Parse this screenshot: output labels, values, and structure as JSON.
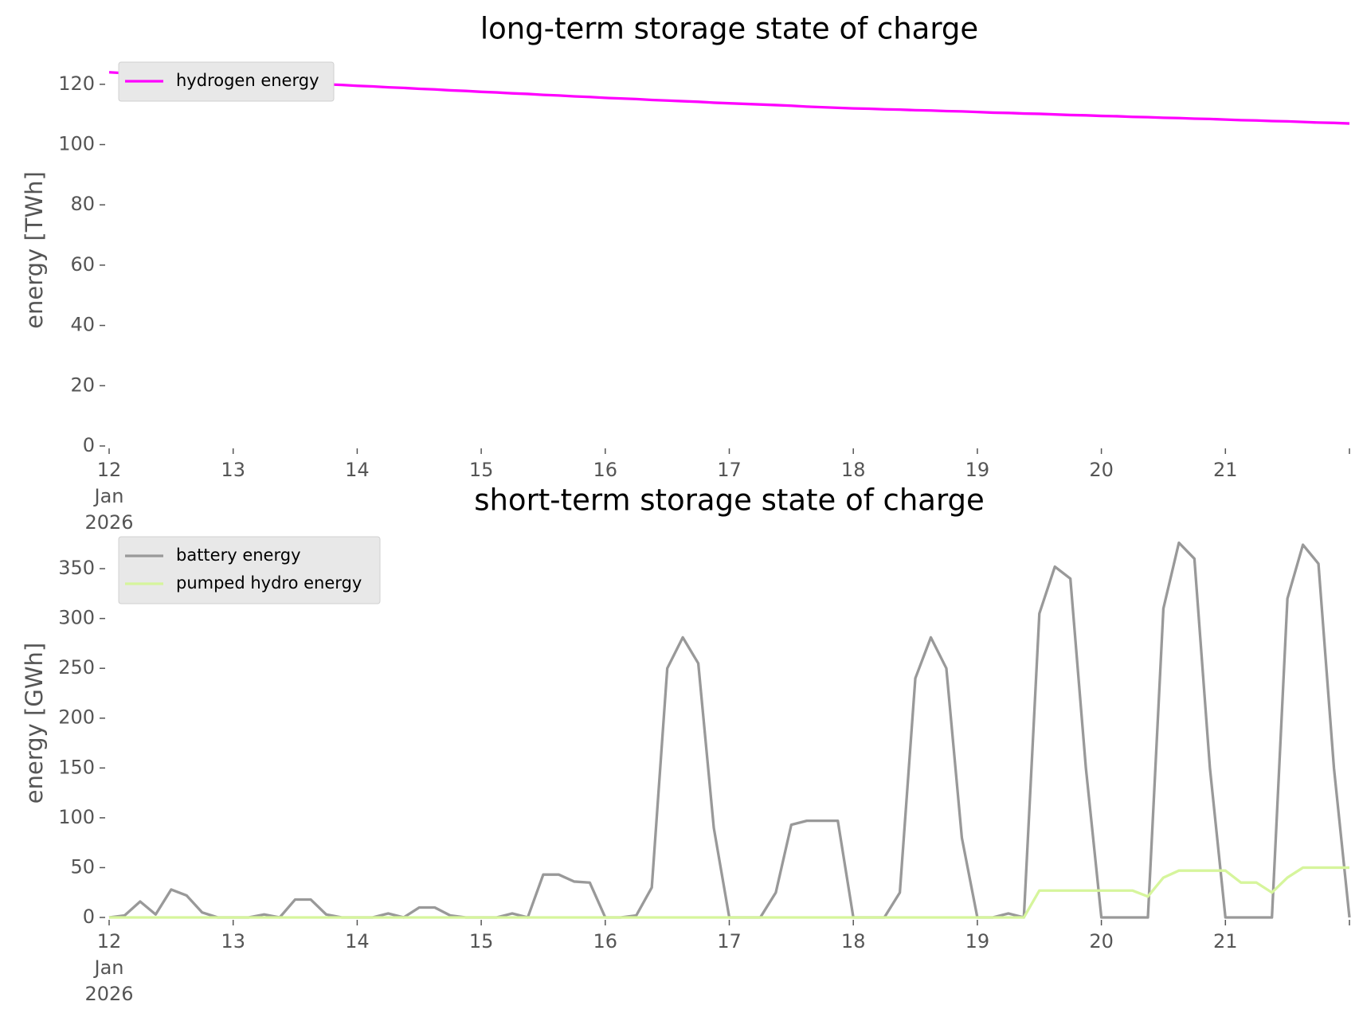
{
  "chart_data": [
    {
      "type": "line",
      "title": "long-term storage state of charge",
      "ylabel": "energy [TWh]",
      "x": [
        12,
        12.125,
        12.25,
        12.375,
        12.5,
        12.625,
        12.75,
        12.875,
        13,
        13.125,
        13.25,
        13.375,
        13.5,
        13.625,
        13.75,
        13.875,
        14,
        14.125,
        14.25,
        14.375,
        14.5,
        14.625,
        14.75,
        14.875,
        15,
        15.125,
        15.25,
        15.375,
        15.5,
        15.625,
        15.75,
        15.875,
        16,
        16.125,
        16.25,
        16.375,
        16.5,
        16.625,
        16.75,
        16.875,
        17,
        17.125,
        17.25,
        17.375,
        17.5,
        17.625,
        17.75,
        17.875,
        18,
        18.125,
        18.25,
        18.375,
        18.5,
        18.625,
        18.75,
        18.875,
        19,
        19.125,
        19.25,
        19.375,
        19.5,
        19.625,
        19.75,
        19.875,
        20,
        20.125,
        20.25,
        20.375,
        20.5,
        20.625,
        20.75,
        20.875,
        21,
        21.125,
        21.25,
        21.375,
        21.5,
        21.625,
        21.75,
        21.875,
        22
      ],
      "series": [
        {
          "name": "hydrogen energy",
          "color": "#ff00ff",
          "values": [
            124,
            123.7,
            123.4,
            123.1,
            122.8,
            122.4,
            122.1,
            121.8,
            121.5,
            121.3,
            121,
            120.8,
            120.5,
            120.3,
            120,
            119.8,
            119.5,
            119.3,
            119,
            118.8,
            118.5,
            118.3,
            118,
            117.8,
            117.5,
            117.3,
            117,
            116.8,
            116.5,
            116.3,
            116,
            115.8,
            115.5,
            115.3,
            115.1,
            114.8,
            114.6,
            114.4,
            114.2,
            113.9,
            113.7,
            113.5,
            113.3,
            113.1,
            112.9,
            112.6,
            112.4,
            112.2,
            112,
            111.9,
            111.7,
            111.6,
            111.4,
            111.3,
            111.1,
            111,
            110.8,
            110.6,
            110.5,
            110.3,
            110.2,
            110,
            109.8,
            109.7,
            109.5,
            109.4,
            109.2,
            109.1,
            108.9,
            108.8,
            108.6,
            108.5,
            108.3,
            108.1,
            108,
            107.8,
            107.7,
            107.5,
            107.3,
            107.2,
            107
          ]
        }
      ],
      "xlim": [
        12,
        22
      ],
      "xticks": [
        {
          "value": 12,
          "label": "12\nJan\n2026"
        },
        13,
        14,
        15,
        16,
        17,
        18,
        19,
        20,
        21,
        {
          "value": 22,
          "label": ""
        }
      ],
      "ylim": [
        0,
        130
      ],
      "yticks": [
        0,
        20,
        40,
        60,
        80,
        100,
        120
      ],
      "grid": false,
      "legend": "upper left"
    },
    {
      "type": "line",
      "title": "short-term storage state of charge",
      "ylabel": "energy [GWh]",
      "x": [
        12,
        12.125,
        12.25,
        12.375,
        12.5,
        12.625,
        12.75,
        12.875,
        13,
        13.125,
        13.25,
        13.375,
        13.5,
        13.625,
        13.75,
        13.875,
        14,
        14.125,
        14.25,
        14.375,
        14.5,
        14.625,
        14.75,
        14.875,
        15,
        15.125,
        15.25,
        15.375,
        15.5,
        15.625,
        15.75,
        15.875,
        16,
        16.125,
        16.25,
        16.375,
        16.5,
        16.625,
        16.75,
        16.875,
        17,
        17.125,
        17.25,
        17.375,
        17.5,
        17.625,
        17.75,
        17.875,
        18,
        18.125,
        18.25,
        18.375,
        18.5,
        18.625,
        18.75,
        18.875,
        19,
        19.125,
        19.25,
        19.375,
        19.5,
        19.625,
        19.75,
        19.875,
        20,
        20.125,
        20.25,
        20.375,
        20.5,
        20.625,
        20.75,
        20.875,
        21,
        21.125,
        21.25,
        21.375,
        21.5,
        21.625,
        21.75,
        21.875,
        22
      ],
      "series": [
        {
          "name": "battery energy",
          "color": "#999999",
          "values": [
            0,
            2,
            16,
            3,
            28,
            22,
            5,
            0,
            0,
            0,
            3,
            0,
            18,
            18,
            3,
            0,
            0,
            0,
            4,
            0,
            10,
            10,
            2,
            0,
            0,
            0,
            4,
            0,
            43,
            43,
            36,
            35,
            0,
            0,
            2,
            30,
            250,
            281,
            255,
            90,
            0,
            0,
            0,
            25,
            93,
            97,
            97,
            97,
            0,
            0,
            0,
            25,
            240,
            281,
            250,
            80,
            0,
            0,
            4,
            0,
            305,
            352,
            340,
            150,
            0,
            0,
            0,
            0,
            310,
            376,
            360,
            150,
            0,
            0,
            0,
            0,
            320,
            374,
            355,
            150,
            0
          ]
        },
        {
          "name": "pumped hydro energy",
          "color": "#d6f59c",
          "values": [
            0,
            0,
            0,
            0,
            0,
            0,
            0,
            0,
            0,
            0,
            0,
            0,
            0,
            0,
            0,
            0,
            0,
            0,
            0,
            0,
            0,
            0,
            0,
            0,
            0,
            0,
            0,
            0,
            0,
            0,
            0,
            0,
            0,
            0,
            0,
            0,
            0,
            0,
            0,
            0,
            0,
            0,
            0,
            0,
            0,
            0,
            0,
            0,
            0,
            0,
            0,
            0,
            0,
            0,
            0,
            0,
            0,
            0,
            0,
            0,
            27,
            27,
            27,
            27,
            27,
            27,
            27,
            21,
            40,
            47,
            47,
            47,
            47,
            35,
            35,
            25,
            40,
            50,
            50,
            50,
            50
          ]
        }
      ],
      "xlim": [
        12,
        22
      ],
      "xticks": [
        {
          "value": 12,
          "label": "12\nJan\n2026"
        },
        13,
        14,
        15,
        16,
        17,
        18,
        19,
        20,
        21,
        {
          "value": 22,
          "label": ""
        }
      ],
      "ylim": [
        0,
        390
      ],
      "yticks": [
        0,
        50,
        100,
        150,
        200,
        250,
        300,
        350
      ],
      "grid": false,
      "legend": "upper left"
    }
  ]
}
